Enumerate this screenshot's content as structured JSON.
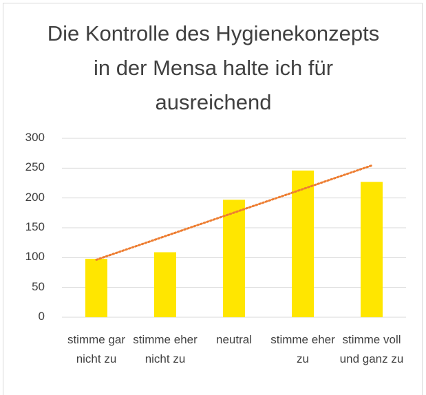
{
  "chart_data": {
    "type": "bar",
    "title": "Die Kontrolle des Hygienekonzepts in der Mensa halte ich für ausreichend",
    "categories": [
      "stimme gar nicht zu",
      "stimme eher nicht zu",
      "neutral",
      "stimme eher zu",
      "stimme voll und ganz zu"
    ],
    "values": [
      98,
      109,
      197,
      246,
      227
    ],
    "color": "#ffe600",
    "ylim": [
      0,
      300
    ],
    "yticks": [
      0,
      50,
      100,
      150,
      200,
      250,
      300
    ],
    "grid": true,
    "trendline": "linear",
    "trendline_color": "#ed7d31"
  }
}
